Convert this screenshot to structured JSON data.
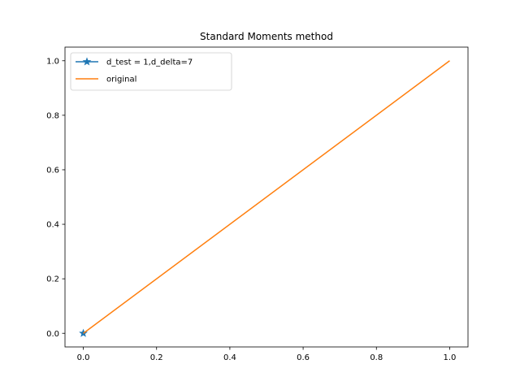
{
  "chart_data": {
    "type": "line",
    "title": "Standard Moments method",
    "xlabel": "",
    "ylabel": "",
    "xlim": [
      -0.05,
      1.05
    ],
    "ylim": [
      -0.05,
      1.05
    ],
    "x_ticks": [
      0.0,
      0.2,
      0.4,
      0.6,
      0.8,
      1.0
    ],
    "x_tick_labels": [
      "0.0",
      "0.2",
      "0.4",
      "0.6",
      "0.8",
      "1.0"
    ],
    "y_ticks": [
      0.0,
      0.2,
      0.4,
      0.6,
      0.8,
      1.0
    ],
    "y_tick_labels": [
      "0.0",
      "0.2",
      "0.4",
      "0.6",
      "0.8",
      "1.0"
    ],
    "grid": false,
    "legend_position": "upper-left",
    "series": [
      {
        "name": "d_test = 1,d_delta=7",
        "color": "#1f77b4",
        "marker": "star",
        "x": [
          0.0
        ],
        "y": [
          0.0
        ]
      },
      {
        "name": "original",
        "color": "#ff7f0e",
        "marker": "none",
        "x": [
          0.0,
          1.0
        ],
        "y": [
          0.0,
          1.0
        ]
      }
    ]
  }
}
